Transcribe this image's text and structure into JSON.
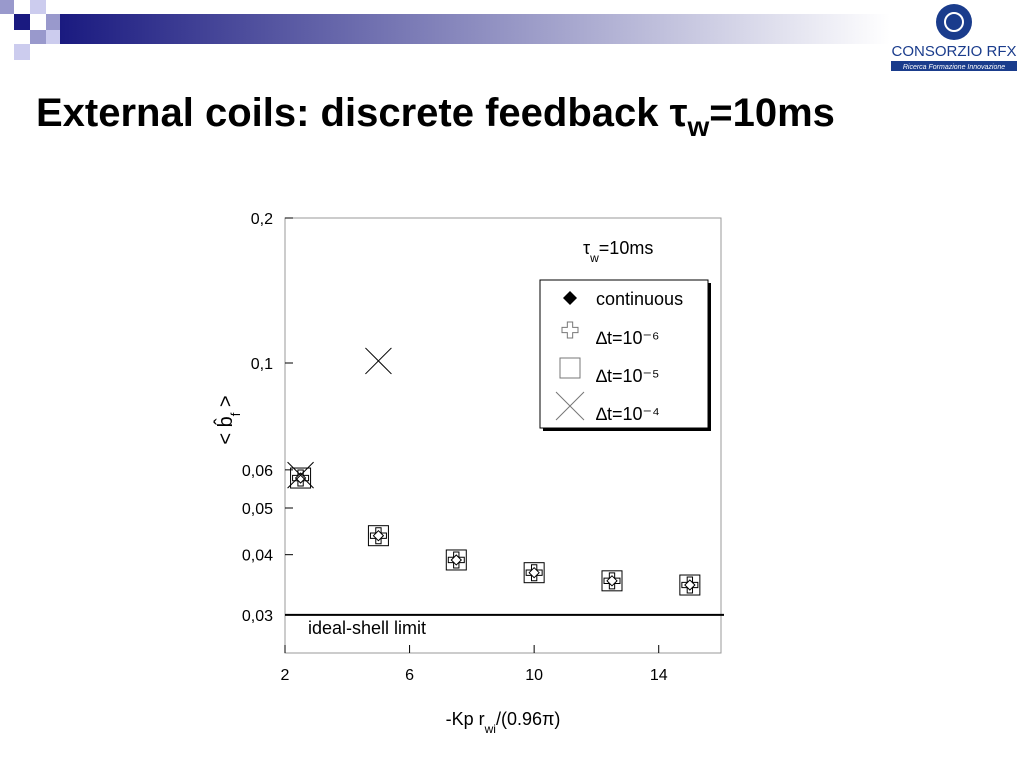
{
  "header": {
    "logo_name": "CONSORZIO RFX",
    "logo_tagline": "Ricerca Formazione Innovazione"
  },
  "chart_data": {
    "type": "scatter",
    "title": [
      "External coils: discrete feedback  τ",
      "w",
      "=10ms"
    ],
    "annotation": [
      "τ",
      "w",
      "=10ms"
    ],
    "x_label": [
      "-Kp r",
      "wi",
      "/(0.96π)"
    ],
    "y_label": [
      "< b̂",
      "f",
      " >"
    ],
    "x": [
      2.5,
      5,
      7.5,
      10,
      12.5,
      15
    ],
    "series": [
      {
        "name": "continuous",
        "marker": "diamond",
        "color": "#000000",
        "values": [
          0.0577,
          0.0438,
          0.039,
          0.0367,
          0.0353,
          0.0346
        ]
      },
      {
        "name": "∆t=10⁻⁶",
        "marker": "plus",
        "color": "#000000",
        "values": [
          0.0577,
          0.0438,
          0.039,
          0.0367,
          0.0353,
          0.0346
        ]
      },
      {
        "name": "∆t=10⁻⁵",
        "marker": "square",
        "color": "#000000",
        "values": [
          0.0577,
          0.0438,
          0.039,
          0.0367,
          0.0353,
          0.0346
        ]
      },
      {
        "name": "∆t=10⁻⁴",
        "marker": "x",
        "color": "#000000",
        "values": [
          0.0585,
          0.101,
          null,
          null,
          null,
          null
        ]
      }
    ],
    "reference_line": {
      "label": "ideal-shell limit",
      "value": 0.03
    },
    "xlim": [
      2,
      16
    ],
    "xticks": [
      2,
      6,
      10,
      14
    ],
    "ylim": [
      0.025,
      0.2
    ],
    "yscale": "log",
    "yticks": [
      {
        "value": 0.03,
        "label": "0,03"
      },
      {
        "value": 0.04,
        "label": "0,04"
      },
      {
        "value": 0.05,
        "label": "0,05"
      },
      {
        "value": 0.06,
        "label": "0,06"
      },
      {
        "value": 0.1,
        "label": "0,1"
      },
      {
        "value": 0.2,
        "label": "0,2"
      }
    ],
    "legend": "upper right"
  }
}
